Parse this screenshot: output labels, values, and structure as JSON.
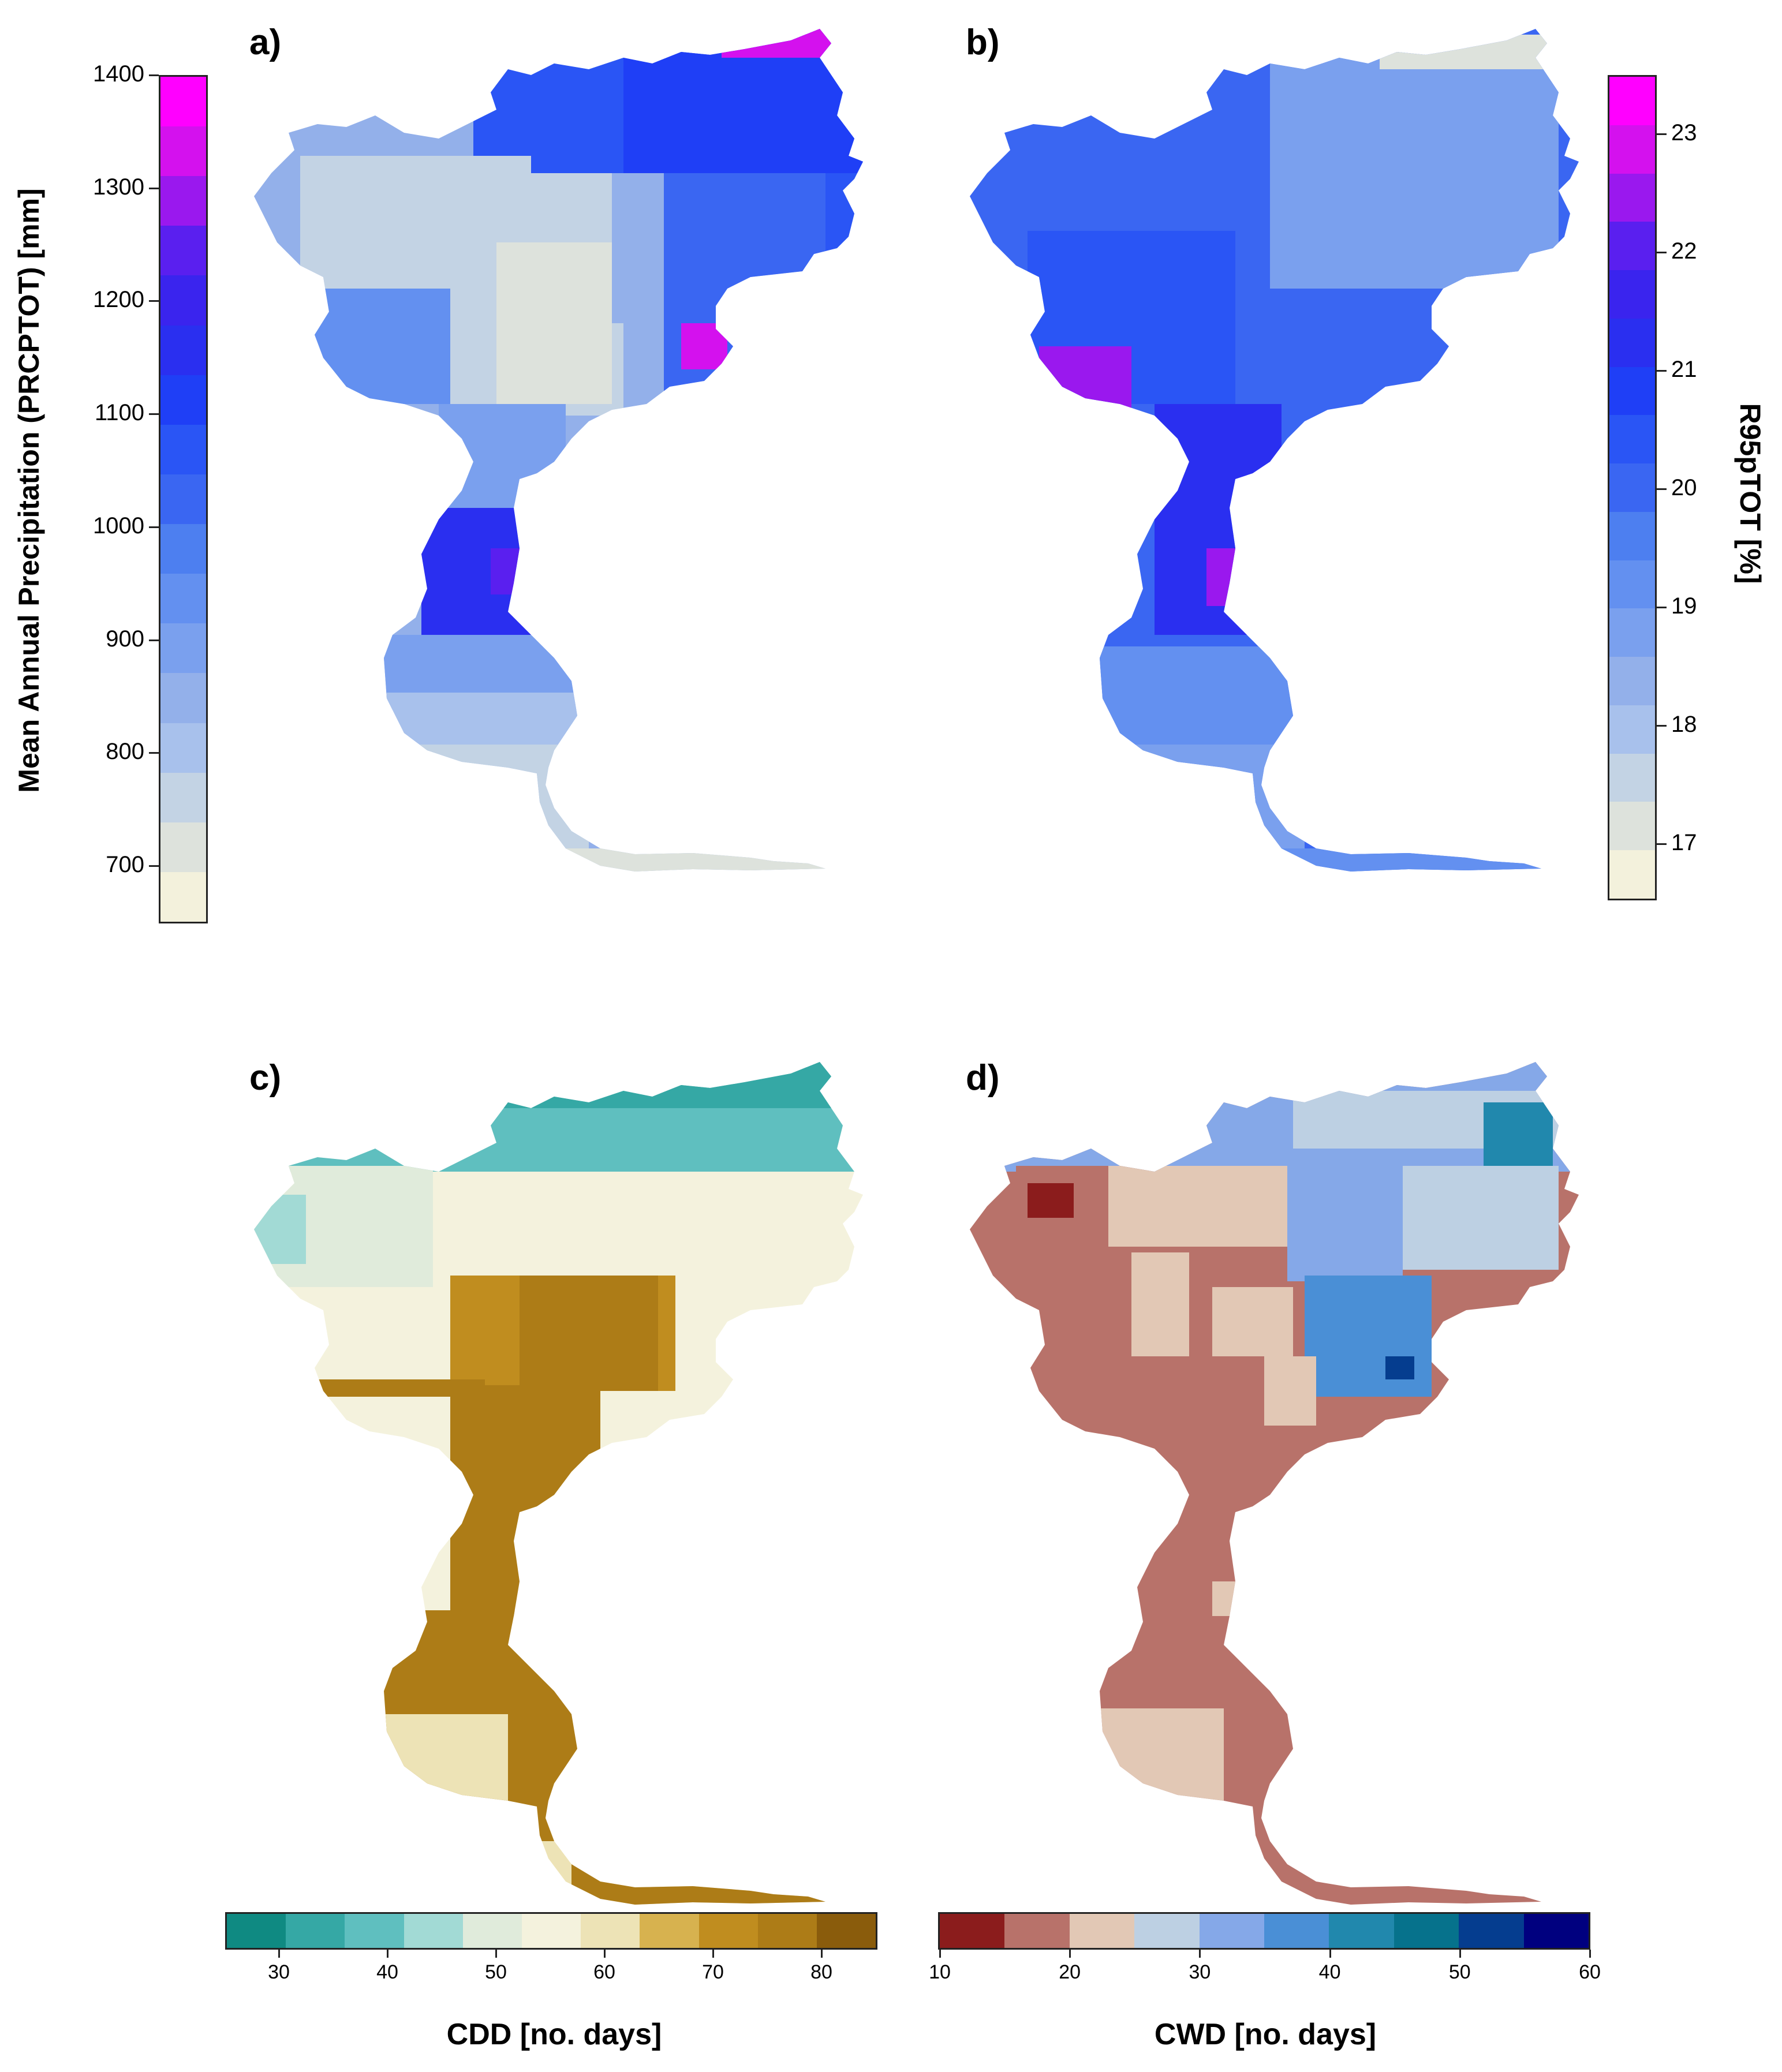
{
  "panels": {
    "a": {
      "label": "a)"
    },
    "b": {
      "label": "b)"
    },
    "c": {
      "label": "c)"
    },
    "d": {
      "label": "d)"
    }
  },
  "legends": {
    "prcptot": {
      "title": "Mean Annual Precipitation (PRCPTOT) [mm]",
      "ticks": [
        "700",
        "800",
        "900",
        "1000",
        "1100",
        "1200",
        "1300",
        "1400"
      ],
      "colors": [
        "#f3f1dc",
        "#dde2dc",
        "#c3d3e4",
        "#a8c1ec",
        "#93b0ea",
        "#7aa0ee",
        "#6390f0",
        "#4d7ff0",
        "#3a66f2",
        "#2a55f5",
        "#1f3ff6",
        "#2a2ff0",
        "#3a24ee",
        "#5a1fef",
        "#9a18ee",
        "#d411ee",
        "#ff00ff"
      ]
    },
    "r95ptot": {
      "title": "R95pTOT [%]",
      "ticks": [
        "17",
        "18",
        "19",
        "20",
        "21",
        "22",
        "23"
      ],
      "colors": [
        "#f3f1dc",
        "#dde2dc",
        "#c3d3e4",
        "#a8c1ec",
        "#93b0ea",
        "#7aa0ee",
        "#6390f0",
        "#4d7ff0",
        "#3a66f2",
        "#2a55f5",
        "#1f3ff6",
        "#2a2ff0",
        "#3a24ee",
        "#5a1fef",
        "#9a18ee",
        "#d411ee",
        "#ff00ff"
      ]
    },
    "cdd": {
      "title": "CDD [no. days]",
      "ticks": [
        "30",
        "40",
        "50",
        "60",
        "70",
        "80"
      ],
      "colors": [
        "#0f8a82",
        "#35a8a5",
        "#5fbfbf",
        "#a2dad5",
        "#e0ebdb",
        "#f4f2dd",
        "#ede3b6",
        "#d7b24f",
        "#c08d1f",
        "#ad7c17",
        "#8a5c0c"
      ]
    },
    "cwd": {
      "title": "CWD [no. days]",
      "ticks": [
        "10",
        "20",
        "30",
        "40",
        "50",
        "60"
      ],
      "colors": [
        "#8b1c1c",
        "#b8726a",
        "#e2c8b5",
        "#bdd0e3",
        "#85a8e8",
        "#4a8fd6",
        "#2188ad",
        "#06728c",
        "#053d8f",
        "#00007f"
      ]
    }
  }
}
